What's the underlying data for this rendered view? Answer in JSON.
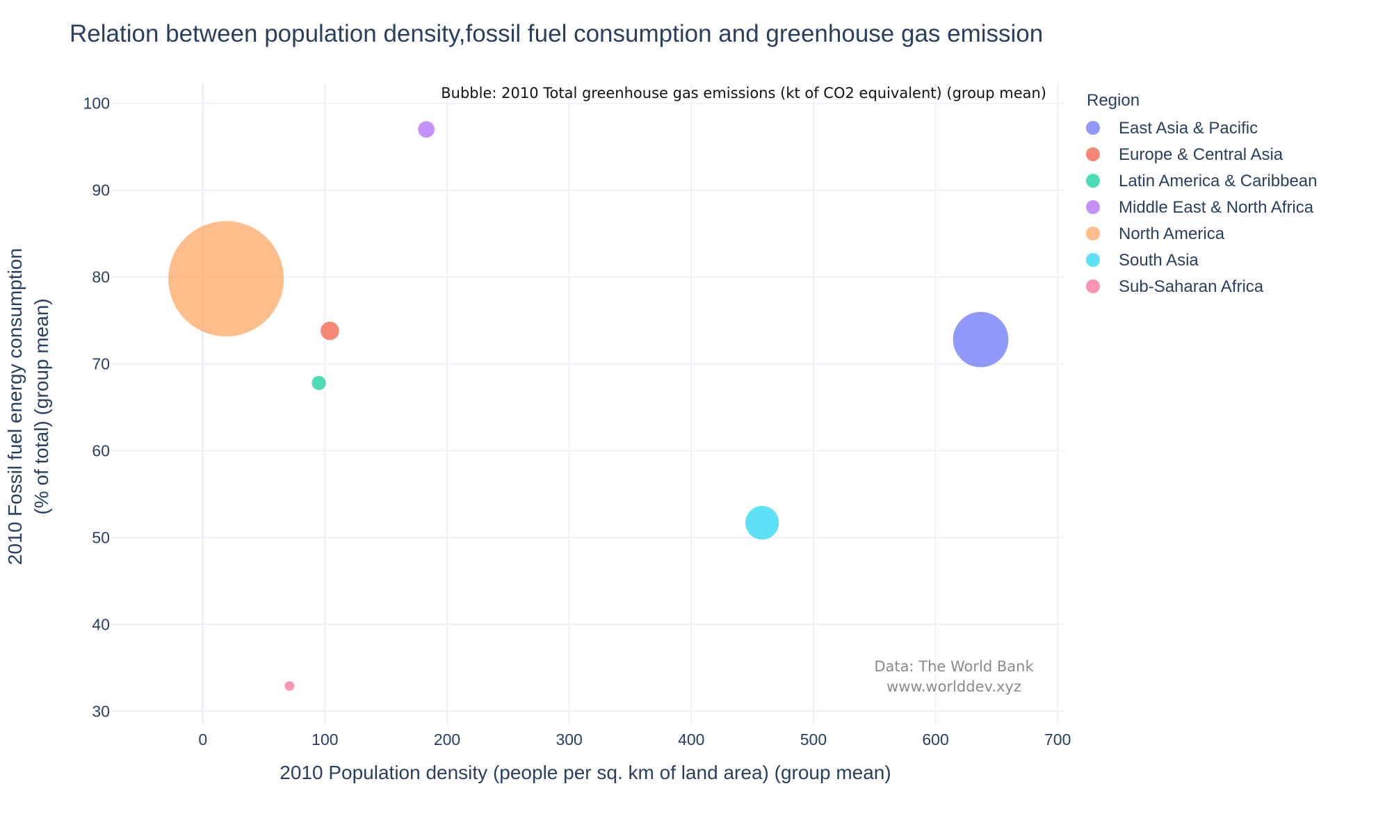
{
  "chart_data": {
    "type": "scatter",
    "title": "Relation between population density,fossil fuel consumption and greenhouse gas emission",
    "xlabel": "2010 Population density (people per sq. km of land area) (group mean)",
    "ylabel_lines": [
      "2010 Fossil fuel energy consumption",
      "(% of total) (group mean)"
    ],
    "xlim": [
      -75,
      705
    ],
    "ylim": [
      28.5,
      102.3
    ],
    "x_ticks": [
      0,
      100,
      200,
      300,
      400,
      500,
      600,
      700
    ],
    "y_ticks": [
      30,
      40,
      50,
      60,
      70,
      80,
      90,
      100
    ],
    "grid": true,
    "legend_title": "Region",
    "legend_position": "right",
    "bubble_note": "Bubble: 2010 Total greenhouse gas emissions (kt of CO2 equivalent) (group mean)",
    "source_lines": [
      "Data: The World Bank",
      "www.worlddev.xyz"
    ],
    "series": [
      {
        "name": "East Asia & Pacific",
        "color": "#636efa",
        "x": 637,
        "y": 72.8,
        "size": 900000
      },
      {
        "name": "Europe & Central Asia",
        "color": "#ef553b",
        "x": 104,
        "y": 73.8,
        "size": 100000
      },
      {
        "name": "Latin America & Caribbean",
        "color": "#00cc96",
        "x": 95,
        "y": 67.8,
        "size": 58000
      },
      {
        "name": "Middle East & North Africa",
        "color": "#ab63fa",
        "x": 183,
        "y": 97.0,
        "size": 80000
      },
      {
        "name": "North America",
        "color": "#ffa15a",
        "x": 19,
        "y": 79.8,
        "size": 3900000
      },
      {
        "name": "South Asia",
        "color": "#19d3f3",
        "x": 458,
        "y": 51.7,
        "size": 330000
      },
      {
        "name": "Sub-Saharan Africa",
        "color": "#ff6692",
        "x": 71,
        "y": 32.9,
        "size": 27000
      }
    ]
  }
}
